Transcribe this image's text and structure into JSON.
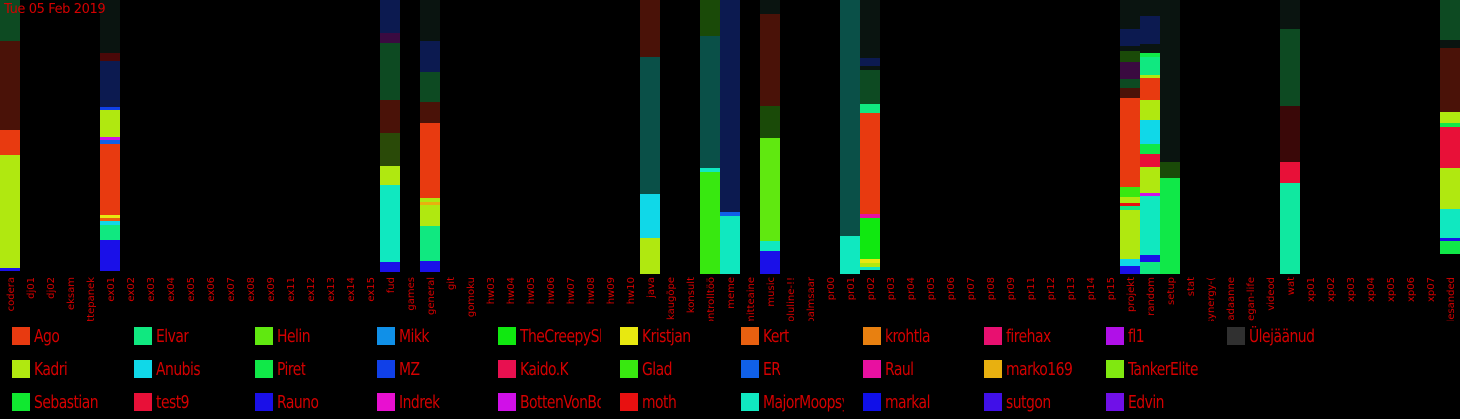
{
  "date_label": "Tue 05 Feb 2019",
  "chart_data": {
    "type": "bar",
    "stacked": true,
    "categories": [
      "codera",
      "dj01",
      "dj02",
      "eksam",
      "ettepanek",
      "ex01",
      "ex02",
      "ex03",
      "ex04",
      "ex05",
      "ex06",
      "ex07",
      "ex08",
      "ex09",
      "ex11",
      "ex12",
      "ex13",
      "ex14",
      "ex15",
      "fud",
      "games",
      "general",
      "git",
      "gomoku",
      "hw03",
      "hw04",
      "hw05",
      "hw06",
      "hw07",
      "hw08",
      "hw09",
      "hw10",
      "java",
      "kaugõpe",
      "konsult",
      "kontrolltöö",
      "meme",
      "mitteaine",
      "music",
      "oluline-!!",
      "palmsaar",
      "pr00",
      "pr01",
      "pr02",
      "pr03",
      "pr04",
      "pr05",
      "pr06",
      "pr07",
      "pr08",
      "pr09",
      "pr11",
      "pr12",
      "pr13",
      "pr14",
      "pr15",
      "projekt",
      "random",
      "setup",
      "stat",
      "synergy-(",
      "teadaanne",
      "vegan-life",
      "videod",
      "wat",
      "xp01",
      "xp02",
      "xp03",
      "xp04",
      "xp05",
      "xp06",
      "xp07",
      "ülesanded"
    ],
    "legend": [
      {
        "name": "Ago",
        "color": "#e83a10"
      },
      {
        "name": "Kadri",
        "color": "#b0e810"
      },
      {
        "name": "Sebastian",
        "color": "#10e830"
      },
      {
        "name": "Elvar",
        "color": "#10e880"
      },
      {
        "name": "Anubis",
        "color": "#10d8e8"
      },
      {
        "name": "test9",
        "color": "#e81038"
      },
      {
        "name": "Helin",
        "color": "#60e810"
      },
      {
        "name": "Piret",
        "color": "#10e848"
      },
      {
        "name": "Rauno",
        "color": "#1a10e8"
      },
      {
        "name": "Mikk",
        "color": "#1090e8"
      },
      {
        "name": "MZ",
        "color": "#1040e8"
      },
      {
        "name": "Indrek",
        "color": "#e810d0"
      },
      {
        "name": "TheCreepySh",
        "color": "#10e810"
      },
      {
        "name": "Kaido.K",
        "color": "#e81050"
      },
      {
        "name": "BottenVonBot",
        "color": "#d010e8"
      },
      {
        "name": "Kristjan",
        "color": "#e8e810"
      },
      {
        "name": "Glad",
        "color": "#38e810"
      },
      {
        "name": "moth",
        "color": "#e81010"
      },
      {
        "name": "Kert",
        "color": "#e86010"
      },
      {
        "name": "ER",
        "color": "#1060e8"
      },
      {
        "name": "MajorMoopsy",
        "color": "#10e8c0"
      },
      {
        "name": "krohtla",
        "color": "#e88010"
      },
      {
        "name": "Raul",
        "color": "#e810a0"
      },
      {
        "name": "markal",
        "color": "#1010e8"
      },
      {
        "name": "firehax",
        "color": "#e81070"
      },
      {
        "name": "marko169",
        "color": "#e8b010"
      },
      {
        "name": "sutgon",
        "color": "#4010e8"
      },
      {
        "name": "fl1",
        "color": "#b010e8"
      },
      {
        "name": "TankerElite",
        "color": "#80e810"
      },
      {
        "name": "Edvin",
        "color": "#7010e8"
      },
      {
        "name": "Ülejäänud",
        "color": "#303030"
      }
    ],
    "bars": {
      "codera": [
        [
          "#0d4a22",
          41
        ],
        [
          "#4a1208",
          89
        ],
        [
          "#e83a10",
          25
        ],
        [
          "#b0e810",
          113
        ],
        [
          "#1a10e8",
          3
        ]
      ],
      "ex01": [
        [
          "#0a1410",
          53
        ],
        [
          "#4a0808",
          8
        ],
        [
          "#0c1a50",
          46
        ],
        [
          "#1040e8",
          3
        ],
        [
          "#b0e810",
          27
        ],
        [
          "#d010e8",
          3
        ],
        [
          "#1060e8",
          4
        ],
        [
          "#e83a10",
          71
        ],
        [
          "#e8e810",
          3
        ],
        [
          "#e86010",
          3
        ],
        [
          "#10d8e8",
          4
        ],
        [
          "#10e880",
          15
        ],
        [
          "#1a10e8",
          31
        ]
      ],
      "fud": [
        [
          "#0c1a50",
          33
        ],
        [
          "#3a0a40",
          10
        ],
        [
          "#0d4a22",
          57
        ],
        [
          "#4a1208",
          33
        ],
        [
          "#2a4a08",
          33
        ],
        [
          "#b0e810",
          19
        ],
        [
          "#10e8c0",
          77
        ],
        [
          "#1a10e8",
          10
        ]
      ],
      "general": [
        [
          "#0a1410",
          41
        ],
        [
          "#0c1a50",
          31
        ],
        [
          "#0d4a22",
          9
        ],
        [
          "#0d4a22",
          21
        ],
        [
          "#4a1208",
          21
        ],
        [
          "#e83a10",
          75
        ],
        [
          "#b0e810",
          4
        ],
        [
          "#e8b010",
          3
        ],
        [
          "#b0e810",
          21
        ],
        [
          "#10e880",
          35
        ],
        [
          "#1a10e8",
          11
        ]
      ],
      "java": [
        [
          "#4a1208",
          57
        ],
        [
          "#0a5048",
          137
        ],
        [
          "#10d8e8",
          44
        ],
        [
          "#b0e810",
          36
        ]
      ],
      "kontrolltöö": [
        [
          "#1a4a08",
          36
        ],
        [
          "#0a5048",
          132
        ],
        [
          "#10e8c0",
          4
        ],
        [
          "#38e810",
          102
        ]
      ],
      "meme": [
        [
          "#0c1a50",
          212
        ],
        [
          "#1060e8",
          4
        ],
        [
          "#10e8c0",
          58
        ]
      ],
      "music": [
        [
          "#0a1410",
          14
        ],
        [
          "#4a1208",
          92
        ],
        [
          "#1a4a08",
          32
        ],
        [
          "#60e810",
          103
        ],
        [
          "#10e8c0",
          10
        ],
        [
          "#1a10e8",
          23
        ]
      ],
      "pr01": [
        [
          "#0a5048",
          236
        ],
        [
          "#10e8c0",
          38
        ]
      ],
      "pr02": [
        [
          "#0a1410",
          58
        ],
        [
          "#0c1a50",
          8
        ],
        [
          "#0a1410",
          4
        ],
        [
          "#0d4a22",
          34
        ],
        [
          "#10e880",
          9
        ],
        [
          "#e83a10",
          101
        ],
        [
          "#e810a0",
          4
        ],
        [
          "#10e810",
          41
        ],
        [
          "#e8e810",
          4
        ],
        [
          "#b0e810",
          4
        ],
        [
          "#10e8c0",
          3
        ]
      ],
      "projekt": [
        [
          "#0a1410",
          29
        ],
        [
          "#0c1a50",
          17
        ],
        [
          "#0a1410",
          5
        ],
        [
          "#1a4a08",
          11
        ],
        [
          "#3a0a40",
          17
        ],
        [
          "#0d4a22",
          9
        ],
        [
          "#4a1208",
          10
        ],
        [
          "#e83a10",
          89
        ],
        [
          "#38e810",
          10
        ],
        [
          "#b0e810",
          6
        ],
        [
          "#e81010",
          3
        ],
        [
          "#10e880",
          4
        ],
        [
          "#b0e810",
          49
        ],
        [
          "#10d8e8",
          7
        ],
        [
          "#1a10e8",
          8
        ]
      ],
      "random": [
        [
          "#0a1410",
          16
        ],
        [
          "#0c1a50",
          28
        ],
        [
          "#0a1410",
          9
        ],
        [
          "#10e848",
          4
        ],
        [
          "#10e880",
          18
        ],
        [
          "#b0e810",
          3
        ],
        [
          "#e83a10",
          22
        ],
        [
          "#b0e810",
          20
        ],
        [
          "#10d8e8",
          24
        ],
        [
          "#10e848",
          10
        ],
        [
          "#e81038",
          13
        ],
        [
          "#b0e810",
          26
        ],
        [
          "#d010e8",
          3
        ],
        [
          "#10e8c0",
          59
        ],
        [
          "#1a10e8",
          7
        ],
        [
          "#10e880",
          12
        ]
      ],
      "setup": [
        [
          "#0a1410",
          162
        ],
        [
          "#1a4a08",
          16
        ],
        [
          "#10e848",
          96
        ]
      ],
      "wat": [
        [
          "#0a1410",
          29
        ],
        [
          "#0d4a22",
          77
        ],
        [
          "#3a0808",
          56
        ],
        [
          "#e81038",
          21
        ],
        [
          "#10e8a0",
          91
        ]
      ],
      "ülesanded": [
        [
          "#0d4a22",
          40
        ],
        [
          "#0a1410",
          8
        ],
        [
          "#4a1208",
          64
        ],
        [
          "#b0e810",
          11
        ],
        [
          "#10e848",
          4
        ],
        [
          "#e81038",
          41
        ],
        [
          "#b0e810",
          41
        ],
        [
          "#10e8c0",
          29
        ],
        [
          "#1a10e8",
          3
        ],
        [
          "#10e848",
          13
        ]
      ]
    }
  }
}
